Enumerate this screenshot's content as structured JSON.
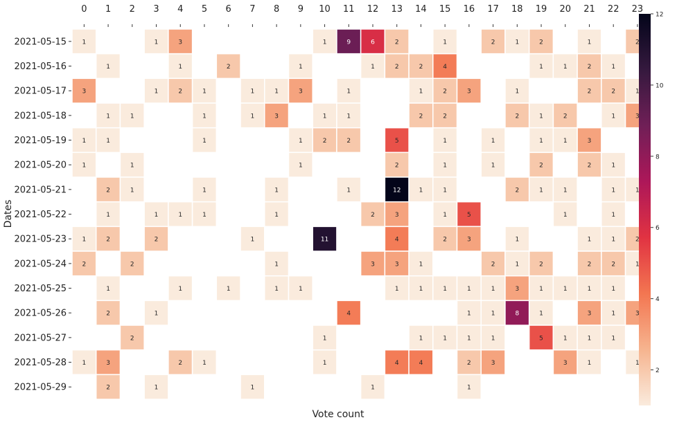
{
  "chart_data": {
    "type": "heatmap",
    "title": "",
    "xlabel": "Vote count",
    "ylabel": "Dates",
    "x_categories": [
      "0",
      "1",
      "2",
      "3",
      "4",
      "5",
      "6",
      "7",
      "8",
      "9",
      "10",
      "11",
      "12",
      "13",
      "14",
      "15",
      "16",
      "17",
      "18",
      "19",
      "20",
      "21",
      "22",
      "23"
    ],
    "y_categories": [
      "2021-05-15",
      "2021-05-16",
      "2021-05-17",
      "2021-05-18",
      "2021-05-19",
      "2021-05-20",
      "2021-05-21",
      "2021-05-22",
      "2021-05-23",
      "2021-05-24",
      "2021-05-25",
      "2021-05-26",
      "2021-05-27",
      "2021-05-28",
      "2021-05-29"
    ],
    "values": [
      [
        1,
        null,
        null,
        1,
        3,
        null,
        null,
        null,
        null,
        null,
        1,
        9,
        6,
        2,
        null,
        1,
        null,
        2,
        1,
        2,
        null,
        1,
        null,
        2
      ],
      [
        null,
        1,
        null,
        null,
        1,
        null,
        2,
        null,
        null,
        1,
        null,
        null,
        1,
        2,
        2,
        4,
        null,
        null,
        null,
        1,
        1,
        2,
        1,
        null
      ],
      [
        3,
        null,
        null,
        1,
        2,
        1,
        null,
        1,
        1,
        3,
        null,
        1,
        null,
        null,
        1,
        2,
        3,
        null,
        1,
        null,
        null,
        2,
        2,
        1
      ],
      [
        null,
        1,
        1,
        null,
        null,
        1,
        null,
        1,
        3,
        null,
        1,
        1,
        null,
        null,
        2,
        2,
        null,
        null,
        2,
        1,
        2,
        null,
        1,
        3
      ],
      [
        1,
        1,
        null,
        null,
        null,
        1,
        null,
        null,
        null,
        1,
        2,
        2,
        null,
        5,
        null,
        1,
        null,
        1,
        null,
        1,
        1,
        3,
        null,
        null
      ],
      [
        1,
        null,
        1,
        null,
        null,
        null,
        null,
        null,
        null,
        1,
        null,
        null,
        null,
        2,
        null,
        1,
        null,
        1,
        null,
        2,
        null,
        2,
        1,
        null
      ],
      [
        null,
        2,
        1,
        null,
        null,
        1,
        null,
        null,
        1,
        null,
        null,
        1,
        null,
        12,
        1,
        1,
        null,
        null,
        2,
        1,
        1,
        null,
        1,
        1
      ],
      [
        null,
        1,
        null,
        1,
        1,
        1,
        null,
        null,
        1,
        null,
        null,
        null,
        2,
        3,
        null,
        1,
        5,
        null,
        null,
        null,
        1,
        null,
        1,
        null
      ],
      [
        1,
        2,
        null,
        2,
        null,
        null,
        null,
        1,
        null,
        null,
        11,
        null,
        null,
        4,
        null,
        2,
        3,
        null,
        1,
        null,
        null,
        1,
        1,
        2
      ],
      [
        2,
        null,
        2,
        null,
        null,
        null,
        null,
        null,
        1,
        null,
        null,
        null,
        3,
        3,
        1,
        null,
        null,
        2,
        1,
        2,
        null,
        2,
        2,
        1
      ],
      [
        null,
        1,
        null,
        null,
        1,
        null,
        1,
        null,
        1,
        1,
        null,
        null,
        null,
        1,
        1,
        1,
        1,
        1,
        3,
        1,
        1,
        1,
        1,
        null
      ],
      [
        null,
        2,
        null,
        1,
        null,
        null,
        null,
        null,
        null,
        null,
        null,
        4,
        null,
        null,
        null,
        null,
        1,
        1,
        8,
        1,
        null,
        3,
        1,
        3
      ],
      [
        null,
        null,
        2,
        null,
        null,
        null,
        null,
        null,
        null,
        null,
        1,
        null,
        null,
        null,
        1,
        1,
        1,
        1,
        null,
        5,
        1,
        1,
        1,
        null
      ],
      [
        1,
        3,
        null,
        null,
        2,
        1,
        null,
        null,
        null,
        null,
        1,
        null,
        null,
        4,
        4,
        null,
        2,
        3,
        null,
        null,
        3,
        1,
        null,
        1
      ],
      [
        null,
        2,
        null,
        1,
        null,
        null,
        null,
        1,
        null,
        null,
        null,
        null,
        1,
        null,
        null,
        null,
        1,
        null,
        null,
        null,
        null,
        null,
        null,
        null
      ]
    ],
    "colorbar": {
      "range": [
        1,
        12
      ],
      "ticks": [
        2,
        4,
        6,
        8,
        10,
        12
      ],
      "colormap": "rocket_r",
      "stops": [
        "#faebdd",
        "#f6b48f",
        "#f37651",
        "#e13342",
        "#ad1759",
        "#701f57",
        "#35193e",
        "#03051a"
      ]
    },
    "grid": false,
    "cell_border_color": "#ffffff"
  }
}
